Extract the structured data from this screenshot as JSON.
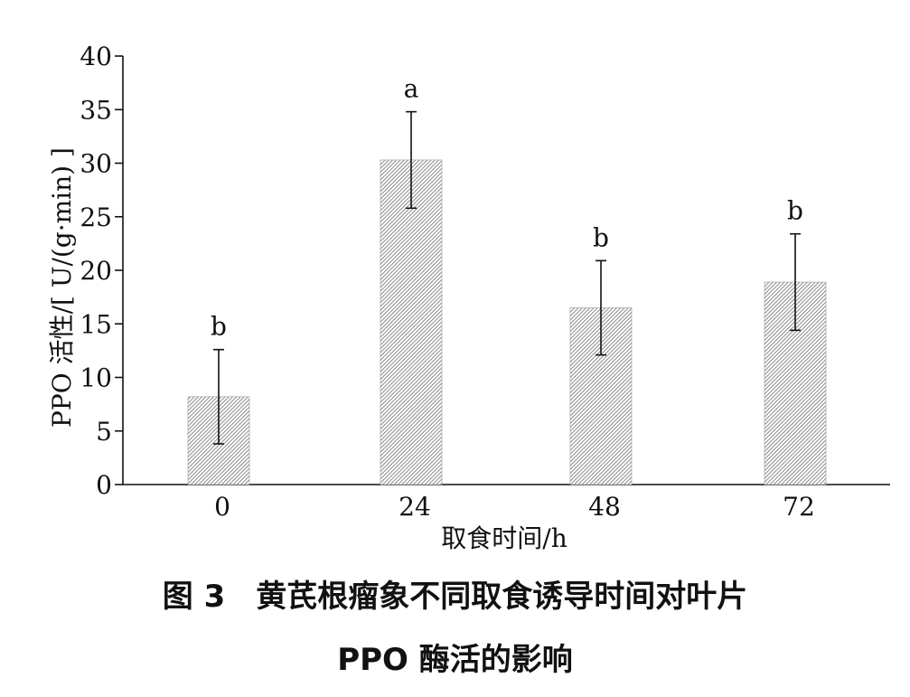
{
  "chart_data": {
    "type": "bar",
    "xlabel": "取食时间/h",
    "ylabel": "PPO 活性/[ U/(g·min) ]",
    "categories": [
      "0",
      "24",
      "48",
      "72"
    ],
    "values": [
      8.2,
      30.3,
      16.5,
      18.9
    ],
    "errors": [
      4.4,
      4.5,
      4.4,
      4.5
    ],
    "significance_labels": [
      "b",
      "a",
      "b",
      "b"
    ],
    "ylim": [
      0,
      40
    ],
    "yticks": [
      "0",
      "5",
      "10",
      "15",
      "20",
      "25",
      "30",
      "35",
      "40"
    ],
    "grid": false,
    "bar_pattern": "diagonal-hatch"
  },
  "caption": {
    "line1": "图 3　黄芪根瘤象不同取食诱导时间对叶片",
    "line2": "PPO 酶活的影响"
  },
  "colors": {
    "bar_hatch": "#6e6e6e",
    "axis": "#111111"
  }
}
